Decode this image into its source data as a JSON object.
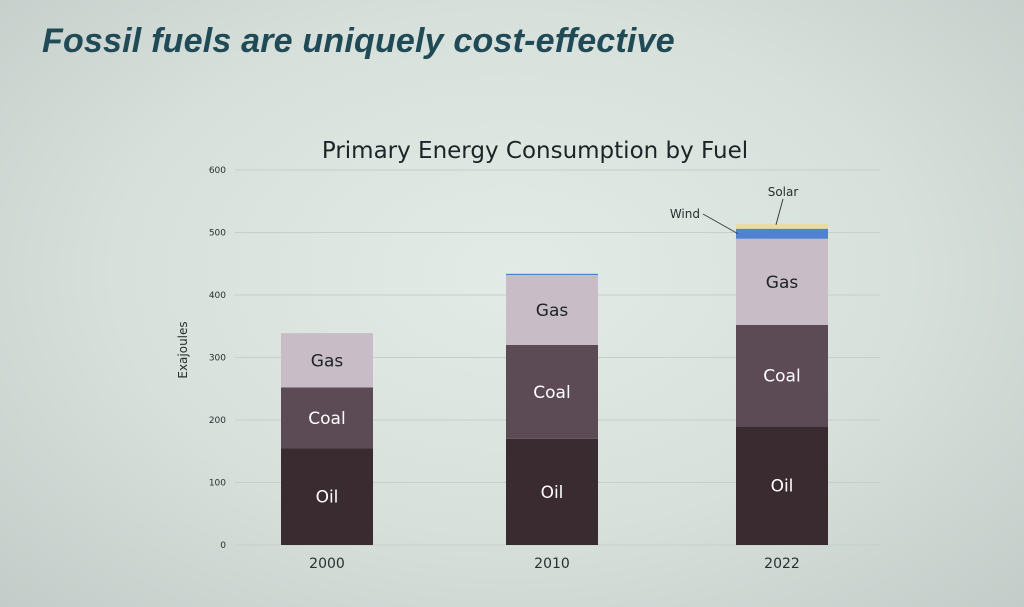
{
  "slide": {
    "title": "Fossil fuels are uniquely cost-effective"
  },
  "chart_data": {
    "type": "bar",
    "stacked": true,
    "title": "Primary Energy Consumption by Fuel",
    "ylabel": "Exajoules",
    "xlabel": "",
    "ylim": [
      0,
      600
    ],
    "yticks": [
      "0",
      "100",
      "200",
      "300",
      "400",
      "500",
      "600"
    ],
    "categories": [
      "2000",
      "2010",
      "2022"
    ],
    "grid": true,
    "series": [
      {
        "name": "Oil",
        "values": [
          155,
          170,
          190
        ],
        "color": "#3a2b30",
        "label_color": "#ffffff"
      },
      {
        "name": "Coal",
        "values": [
          97,
          150,
          162
        ],
        "color": "#5c4a55",
        "label_color": "#ffffff"
      },
      {
        "name": "Gas",
        "values": [
          87,
          112,
          138
        ],
        "color": "#c8bcc6",
        "label_color": "#1d2326"
      },
      {
        "name": "Wind",
        "values": [
          0,
          2,
          16
        ],
        "color": "#4f82d0"
      },
      {
        "name": "Solar",
        "values": [
          0,
          1,
          8
        ],
        "color": "#e8dca4"
      }
    ],
    "annotations": [
      {
        "text": "Wind",
        "category": "2022",
        "series": "Wind"
      },
      {
        "text": "Solar",
        "category": "2022",
        "series": "Solar"
      }
    ]
  }
}
